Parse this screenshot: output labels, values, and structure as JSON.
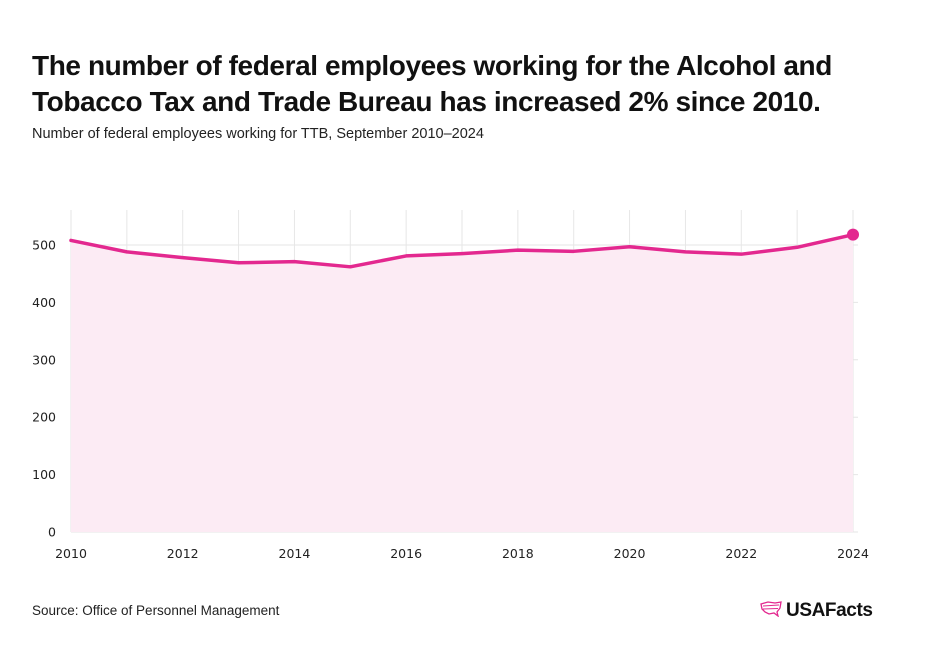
{
  "header": {
    "title": "The number of federal employees working for the Alcohol and Tobacco Tax and Trade Bureau has increased 2% since 2010.",
    "subtitle": "Number of federal employees working for TTB, September 2010–2024"
  },
  "footer": {
    "source": "Source: Office of Personnel Management",
    "brand": "USAFacts",
    "brand_icon": "usa-map-stripes-icon"
  },
  "colors": {
    "line": "#e3288f",
    "area": "#fcebf4",
    "grid": "#e6e6e6"
  },
  "chart_data": {
    "type": "area",
    "title": "",
    "xlabel": "",
    "ylabel": "",
    "x": [
      2010,
      2011,
      2012,
      2013,
      2014,
      2015,
      2016,
      2017,
      2018,
      2019,
      2020,
      2021,
      2022,
      2023,
      2024
    ],
    "series": [
      {
        "values": [
          508,
          488,
          478,
          469,
          471,
          462,
          481,
          485,
          491,
          489,
          497,
          488,
          484,
          496,
          518
        ]
      }
    ],
    "xticks": [
      "2010",
      "2012",
      "2014",
      "2016",
      "2018",
      "2020",
      "2022",
      "2024"
    ],
    "yticks": [
      "0",
      "100",
      "200",
      "300",
      "400",
      "500"
    ],
    "xlim": [
      2010,
      2024
    ],
    "ylim": [
      0,
      500
    ],
    "grid": true,
    "legend": "none",
    "highlight_last_point": true
  }
}
